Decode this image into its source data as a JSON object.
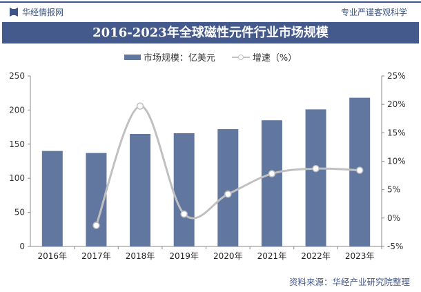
{
  "header": {
    "brand": "华经情报网",
    "slogan": "专业严谨客观科学"
  },
  "colors": {
    "bar": "#62779f",
    "line": "#c0c0c0",
    "title_bg": "#44598c"
  },
  "chart_data": {
    "type": "bar+line",
    "title": "2016-2023年全球磁性元件行业市场规模",
    "categories": [
      "2016年",
      "2017年",
      "2018年",
      "2019年",
      "2020年",
      "2021年",
      "2022年",
      "2023年"
    ],
    "series": [
      {
        "name": "市场规模：亿美元",
        "type": "bar",
        "axis": "left",
        "values": [
          140,
          137,
          165,
          166,
          172,
          185,
          201,
          218
        ]
      },
      {
        "name": "增速（%）",
        "type": "line",
        "axis": "right",
        "values": [
          null,
          -1.3,
          19.7,
          0.7,
          4.2,
          7.8,
          8.7,
          8.4
        ]
      }
    ],
    "left_axis": {
      "ylim": [
        0,
        250
      ],
      "ticks": [
        "0",
        "50",
        "100",
        "150",
        "200",
        "250"
      ]
    },
    "right_axis": {
      "ylim": [
        -5,
        25
      ],
      "ticks": [
        "-5%",
        "0%",
        "5%",
        "10%",
        "15%",
        "20%",
        "25%"
      ]
    },
    "grid": false,
    "legend": "top"
  },
  "footer": {
    "source": "资料来源：华经产业研究院整理"
  }
}
